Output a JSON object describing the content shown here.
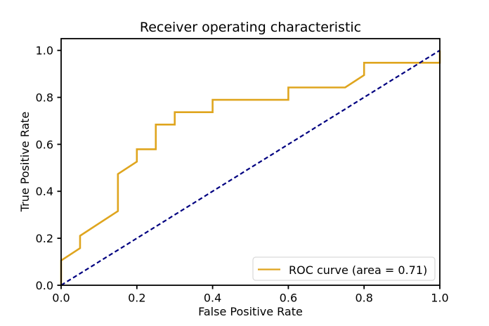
{
  "figure": {
    "background_color": "#ffffff",
    "text_color": "#000000",
    "spine_color": "#000000"
  },
  "chart_data": {
    "type": "line",
    "title": "Receiver operating characteristic",
    "xlabel": "False Positive Rate",
    "ylabel": "True Positive Rate",
    "xlim": [
      0.0,
      1.0
    ],
    "ylim": [
      0.0,
      1.05
    ],
    "xticks": [
      "0.0",
      "0.2",
      "0.4",
      "0.6",
      "0.8",
      "1.0"
    ],
    "yticks": [
      "0.0",
      "0.2",
      "0.4",
      "0.6",
      "0.8",
      "1.0"
    ],
    "grid": false,
    "auc": 0.71,
    "series": [
      {
        "name": "ROC curve (area = 0.71)",
        "color": "#dfa51e",
        "style": "solid",
        "line_width": 2.6,
        "x": [
          0.0,
          0.0,
          0.05,
          0.05,
          0.15,
          0.15,
          0.2,
          0.2,
          0.25,
          0.25,
          0.3,
          0.3,
          0.4,
          0.4,
          0.6,
          0.6,
          0.75,
          0.8,
          0.8,
          1.0,
          1.0
        ],
        "y": [
          0.0,
          0.1053,
          0.1579,
          0.2105,
          0.3158,
          0.4737,
          0.5263,
          0.5789,
          0.5789,
          0.6842,
          0.6842,
          0.7368,
          0.7368,
          0.7895,
          0.7895,
          0.8421,
          0.8421,
          0.8947,
          0.9474,
          0.9474,
          1.0
        ]
      },
      {
        "name": "chance-diagonal",
        "color": "#000080",
        "style": "dashed",
        "line_width": 2.2,
        "x": [
          0.0,
          1.0
        ],
        "y": [
          0.0,
          1.0
        ]
      }
    ],
    "legend": {
      "position": "lower right",
      "entries": [
        {
          "label": "ROC curve (area = 0.71)",
          "color": "#dfa51e"
        }
      ]
    }
  }
}
